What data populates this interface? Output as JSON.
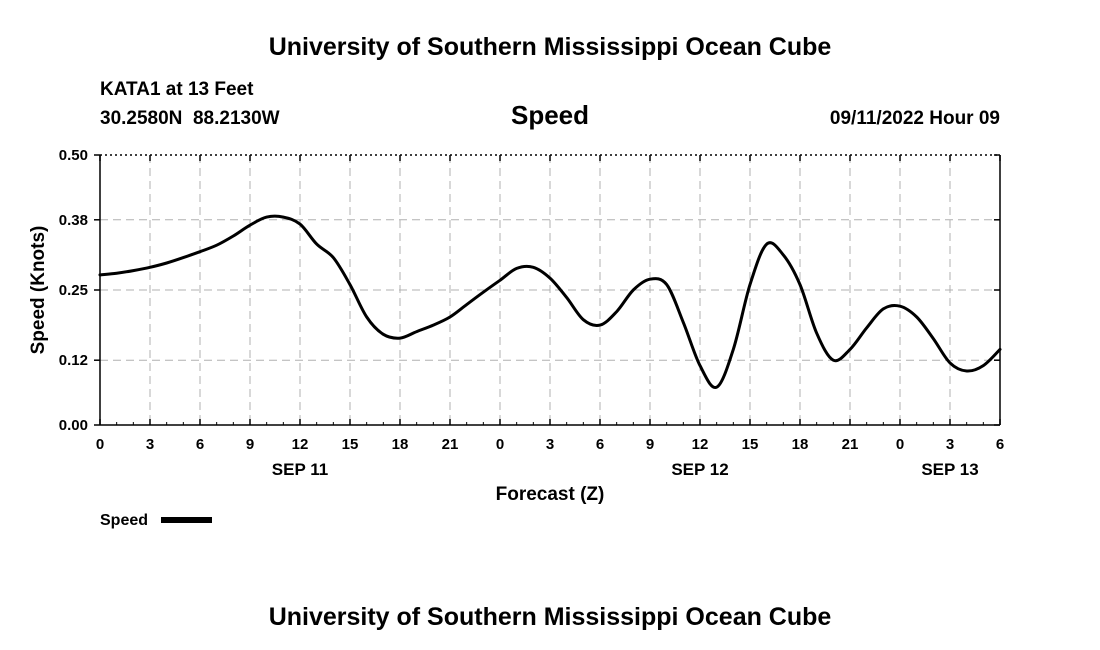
{
  "header": {
    "title": "University of Southern Mississippi Ocean Cube",
    "station": "KATA1 at 13 Feet",
    "coords": "30.2580N  88.2130W",
    "variable": "Speed",
    "timestamp": "09/11/2022 Hour 09"
  },
  "footer": {
    "title": "University of Southern Mississippi Ocean Cube"
  },
  "chart_data": {
    "type": "line",
    "title": "Speed",
    "xlabel": "Forecast (Z)",
    "ylabel": "Speed (Knots)",
    "ylim": [
      0,
      0.5
    ],
    "y_ticks": [
      "0.00",
      "0.12",
      "0.25",
      "0.38",
      "0.50"
    ],
    "x_ticks": [
      "0",
      "3",
      "6",
      "9",
      "12",
      "15",
      "18",
      "21",
      "0",
      "3",
      "6",
      "9",
      "12",
      "15",
      "18",
      "21",
      "0",
      "3",
      "6"
    ],
    "date_labels": [
      {
        "label": "SEP 11",
        "x": 12
      },
      {
        "label": "SEP 12",
        "x": 36
      },
      {
        "label": "SEP 13",
        "x": 51
      }
    ],
    "grid": true,
    "legend": {
      "label": "Speed",
      "placement": "bottom-left"
    },
    "series": [
      {
        "name": "Speed",
        "color": "#000000",
        "x": [
          0,
          1,
          2,
          3,
          4,
          5,
          6,
          7,
          8,
          9,
          10,
          11,
          12,
          13,
          14,
          15,
          16,
          17,
          18,
          19,
          20,
          21,
          22,
          23,
          24,
          25,
          26,
          27,
          28,
          29,
          30,
          31,
          32,
          33,
          34,
          35,
          36,
          37,
          38,
          39,
          40,
          41,
          42,
          43,
          44,
          45,
          46,
          47,
          48,
          49,
          50,
          51,
          52,
          53,
          54
        ],
        "y": [
          0.278,
          0.281,
          0.286,
          0.292,
          0.3,
          0.31,
          0.321,
          0.333,
          0.35,
          0.37,
          0.385,
          0.385,
          0.372,
          0.335,
          0.31,
          0.26,
          0.2,
          0.168,
          0.161,
          0.173,
          0.185,
          0.2,
          0.223,
          0.246,
          0.268,
          0.29,
          0.292,
          0.272,
          0.236,
          0.195,
          0.185,
          0.21,
          0.25,
          0.27,
          0.26,
          0.19,
          0.11,
          0.07,
          0.14,
          0.26,
          0.335,
          0.315,
          0.26,
          0.17,
          0.12,
          0.14,
          0.18,
          0.215,
          0.22,
          0.2,
          0.16,
          0.115,
          0.1,
          0.11,
          0.14
        ]
      }
    ]
  }
}
